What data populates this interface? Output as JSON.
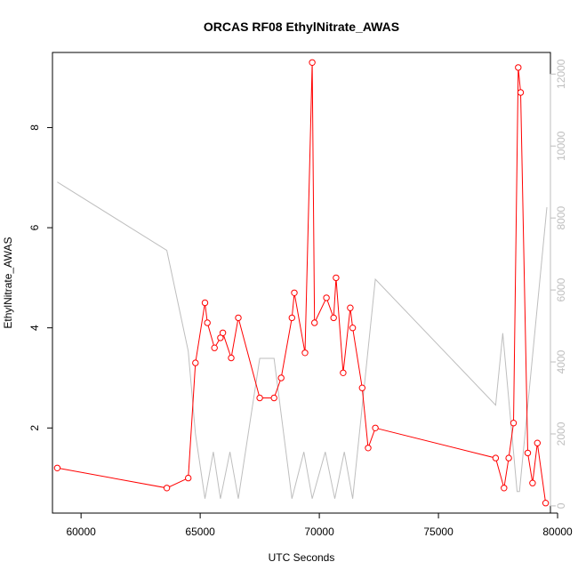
{
  "chart_data": {
    "type": "line",
    "title": "ORCAS RF08 EthylNitrate_AWAS",
    "xlabel": "UTC Seconds",
    "ylabel": "EthylNitrate_AWAS",
    "xlim": [
      58800,
      79700
    ],
    "ylim": [
      0.3,
      9.5
    ],
    "y2lim": [
      -200,
      12600
    ],
    "x_ticks": [
      60000,
      65000,
      70000,
      75000,
      80000
    ],
    "y_ticks": [
      2,
      4,
      6,
      8
    ],
    "y2_ticks": [
      0,
      2000,
      4000,
      6000,
      8000,
      10000,
      12000
    ],
    "grid": false,
    "series": [
      {
        "axis": "left",
        "color": "#ff0000",
        "marker": "open-circle",
        "x": [
          59000,
          63600,
          64500,
          64800,
          65200,
          65300,
          65600,
          65850,
          65950,
          66300,
          66600,
          67500,
          68100,
          68400,
          68850,
          68950,
          69400,
          69700,
          69800,
          70300,
          70600,
          70700,
          71000,
          71300,
          71400,
          71800,
          72050,
          72350,
          77400,
          77750,
          77950,
          78150,
          78350,
          78450,
          78750,
          78950,
          79150,
          79500
        ],
        "y": [
          1.2,
          0.8,
          1.0,
          3.3,
          4.5,
          4.1,
          3.6,
          3.8,
          3.9,
          3.4,
          4.2,
          2.6,
          2.6,
          3.0,
          4.2,
          4.7,
          3.5,
          9.3,
          4.1,
          4.6,
          4.2,
          5.0,
          3.1,
          4.4,
          4.0,
          2.8,
          1.6,
          2.0,
          1.4,
          0.8,
          1.4,
          2.1,
          9.2,
          8.7,
          1.5,
          0.9,
          1.7,
          0.5
        ]
      },
      {
        "axis": "right",
        "color": "#bebebe",
        "marker": "none",
        "x": [
          59000,
          63600,
          64500,
          64800,
          65200,
          65550,
          65850,
          66250,
          66600,
          67500,
          68100,
          68850,
          69350,
          69700,
          70250,
          70650,
          71050,
          71400,
          72350,
          77400,
          77700,
          78300,
          78400,
          79550
        ],
        "y": [
          9000,
          7100,
          4300,
          2000,
          200,
          1500,
          200,
          1500,
          200,
          4100,
          4100,
          200,
          1500,
          200,
          1500,
          200,
          1500,
          200,
          6300,
          2800,
          4800,
          400,
          400,
          8300
        ]
      }
    ]
  }
}
